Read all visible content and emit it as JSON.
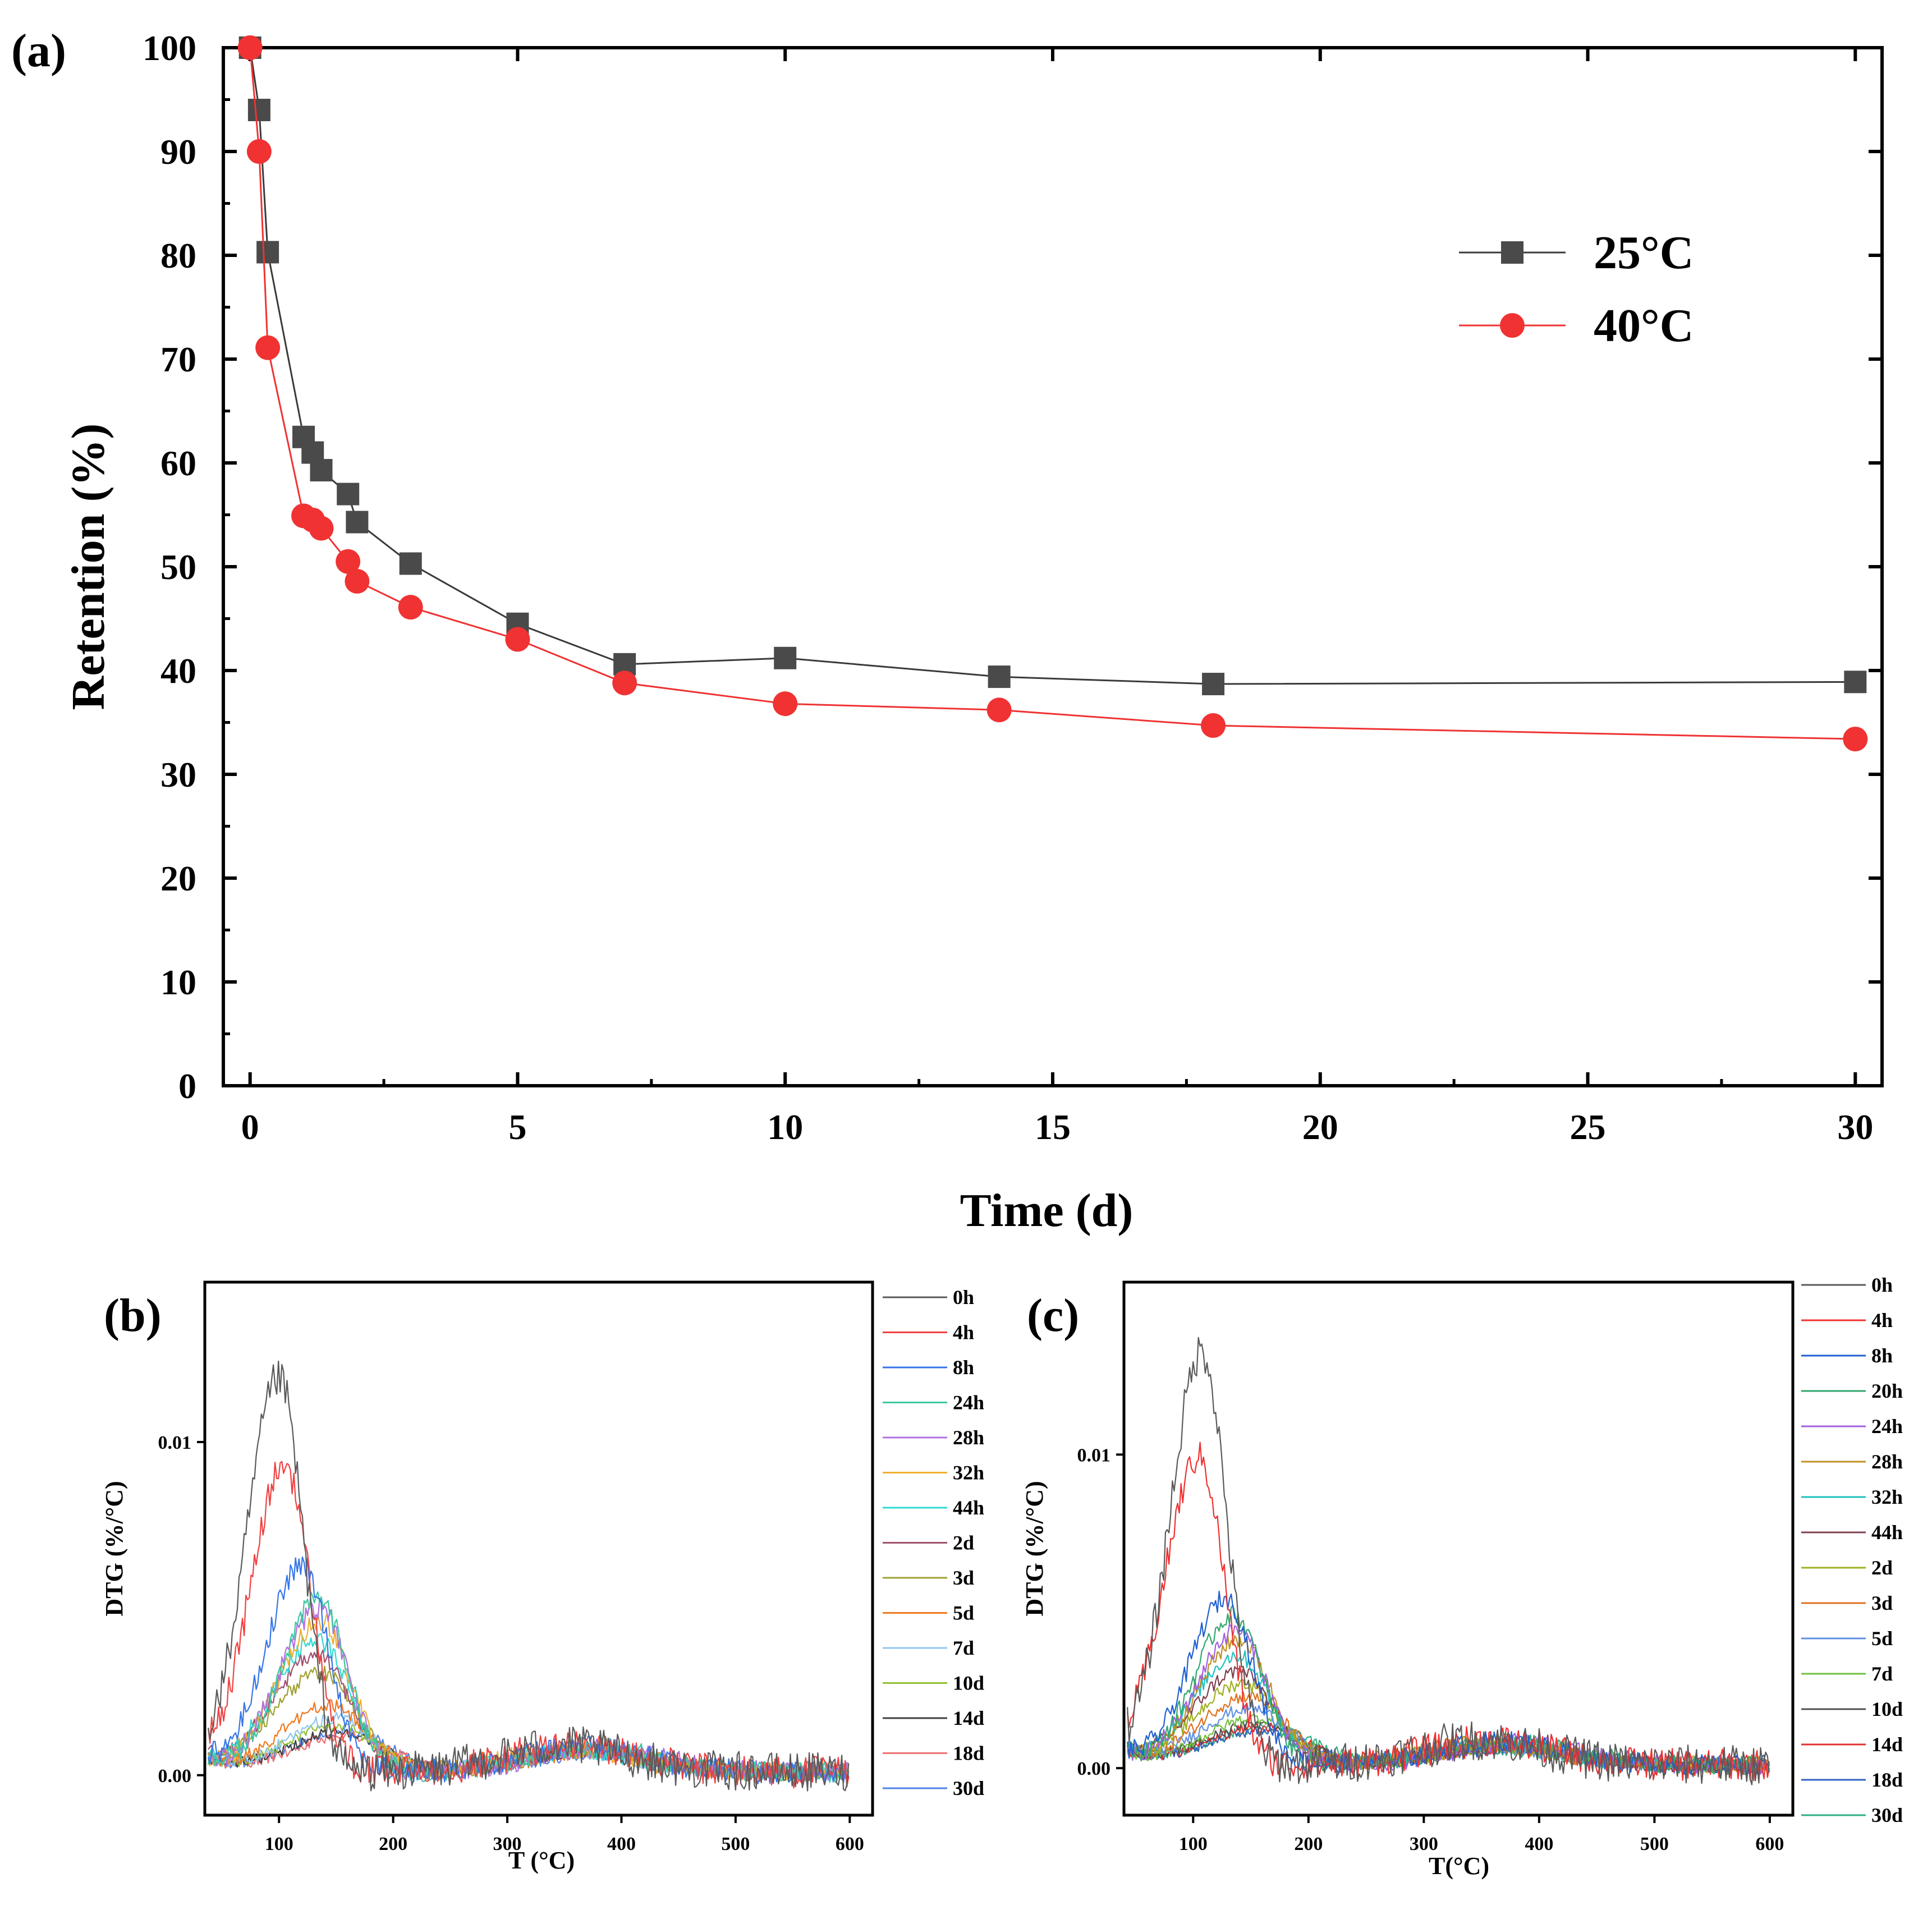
{
  "chart_data": [
    {
      "panel_label": "(a)",
      "type": "line",
      "title": "",
      "xlabel": "Time (d)",
      "ylabel": "Retention (%)",
      "xlim": [
        -0.5,
        30.5
      ],
      "ylim": [
        0,
        100
      ],
      "xticks": [
        0,
        5,
        10,
        15,
        20,
        25,
        30
      ],
      "yticks": [
        0,
        10,
        20,
        30,
        40,
        50,
        60,
        70,
        80,
        90,
        100
      ],
      "legend_position": "top-right",
      "series": [
        {
          "name": "25°C",
          "marker": "square",
          "color": "#4a4a4a",
          "line_color": "#3a3a3a",
          "x": [
            0,
            0.17,
            0.33,
            1,
            1.17,
            1.33,
            1.83,
            2,
            3,
            5,
            7,
            10,
            14,
            18,
            30
          ],
          "y": [
            100,
            94,
            80.3,
            62.5,
            61,
            59.3,
            57,
            54.3,
            50.3,
            44.5,
            40.6,
            41.2,
            39.4,
            38.7,
            38.9
          ]
        },
        {
          "name": "40°C",
          "marker": "circle",
          "color": "#f03232",
          "line_color": "#f03232",
          "x": [
            0,
            0.17,
            0.33,
            1,
            1.17,
            1.33,
            1.83,
            2,
            3,
            5,
            7,
            10,
            14,
            18,
            30
          ],
          "y": [
            100,
            90,
            71.1,
            54.9,
            54.5,
            53.7,
            50.5,
            48.6,
            46.1,
            43,
            38.8,
            36.8,
            36.2,
            34.7,
            33.4
          ]
        }
      ]
    },
    {
      "panel_label": "(b)",
      "type": "line",
      "title": "",
      "xlabel": "T (°C)",
      "ylabel": "DTG (%/°C)",
      "xlim": [
        35,
        620
      ],
      "ylim": [
        -0.0012,
        0.0148
      ],
      "xticks": [
        100,
        200,
        300,
        400,
        500,
        600
      ],
      "ytick_values": [
        0.0,
        0.01
      ],
      "ytick_labels": [
        "0.00",
        "0.01"
      ],
      "legend_position": "right-outside",
      "series": [
        {
          "name": "0h",
          "color": "#5a5a5a",
          "peak_T": 100,
          "peak": 0.0118
        },
        {
          "name": "4h",
          "color": "#f04040",
          "peak_T": 105,
          "peak": 0.0092
        },
        {
          "name": "8h",
          "color": "#3575e8",
          "peak_T": 120,
          "peak": 0.0062
        },
        {
          "name": "24h",
          "color": "#3cc8a0",
          "peak_T": 135,
          "peak": 0.0052
        },
        {
          "name": "28h",
          "color": "#b070e0",
          "peak_T": 135,
          "peak": 0.0049
        },
        {
          "name": "32h",
          "color": "#f0b030",
          "peak_T": 136,
          "peak": 0.0045
        },
        {
          "name": "44h",
          "color": "#30d8d0",
          "peak_T": 133,
          "peak": 0.004
        },
        {
          "name": "2d",
          "color": "#a05070",
          "peak_T": 133,
          "peak": 0.0035
        },
        {
          "name": "3d",
          "color": "#a0a030",
          "peak_T": 137,
          "peak": 0.003
        },
        {
          "name": "5d",
          "color": "#f07820",
          "peak_T": 145,
          "peak": 0.002
        },
        {
          "name": "7d",
          "color": "#90c8f0",
          "peak_T": 150,
          "peak": 0.0016
        },
        {
          "name": "10d",
          "color": "#90c030",
          "peak_T": 150,
          "peak": 0.0014
        },
        {
          "name": "14d",
          "color": "#404040",
          "peak_T": 155,
          "peak": 0.0012
        },
        {
          "name": "18d",
          "color": "#f07070",
          "peak_T": 160,
          "peak": 0.0011
        },
        {
          "name": "30d",
          "color": "#5080e8",
          "peak_T": 160,
          "peak": 0.0012
        }
      ]
    },
    {
      "panel_label": "(c)",
      "type": "line",
      "title": "",
      "xlabel": "T(°C)",
      "ylabel": "DTG (%/°C)",
      "xlim": [
        40,
        620
      ],
      "ylim": [
        -0.0015,
        0.0155
      ],
      "xticks": [
        100,
        200,
        300,
        400,
        500,
        600
      ],
      "ytick_values": [
        0.0,
        0.01
      ],
      "ytick_labels": [
        "0.00",
        "0.01"
      ],
      "legend_position": "right-outside",
      "series": [
        {
          "name": "0h",
          "color": "#5a5a5a",
          "peak_T": 108,
          "peak": 0.0132
        },
        {
          "name": "4h",
          "color": "#f03030",
          "peak_T": 105,
          "peak": 0.0098
        },
        {
          "name": "8h",
          "color": "#2060d0",
          "peak_T": 128,
          "peak": 0.0053
        },
        {
          "name": "20h",
          "color": "#30a870",
          "peak_T": 135,
          "peak": 0.0048
        },
        {
          "name": "24h",
          "color": "#a060e0",
          "peak_T": 138,
          "peak": 0.0043
        },
        {
          "name": "28h",
          "color": "#c09020",
          "peak_T": 140,
          "peak": 0.004
        },
        {
          "name": "32h",
          "color": "#20c0c0",
          "peak_T": 138,
          "peak": 0.0035
        },
        {
          "name": "44h",
          "color": "#804050",
          "peak_T": 140,
          "peak": 0.003
        },
        {
          "name": "2d",
          "color": "#a0b020",
          "peak_T": 143,
          "peak": 0.0026
        },
        {
          "name": "3d",
          "color": "#e07020",
          "peak_T": 148,
          "peak": 0.0022
        },
        {
          "name": "5d",
          "color": "#6090e0",
          "peak_T": 150,
          "peak": 0.0018
        },
        {
          "name": "7d",
          "color": "#70c040",
          "peak_T": 155,
          "peak": 0.0015
        },
        {
          "name": "10d",
          "color": "#505050",
          "peak_T": 158,
          "peak": 0.0013
        },
        {
          "name": "14d",
          "color": "#e03030",
          "peak_T": 160,
          "peak": 0.0012
        },
        {
          "name": "18d",
          "color": "#3060c0",
          "peak_T": 162,
          "peak": 0.0011
        },
        {
          "name": "30d",
          "color": "#30b080",
          "peak_T": 165,
          "peak": 0.0012
        }
      ]
    }
  ]
}
